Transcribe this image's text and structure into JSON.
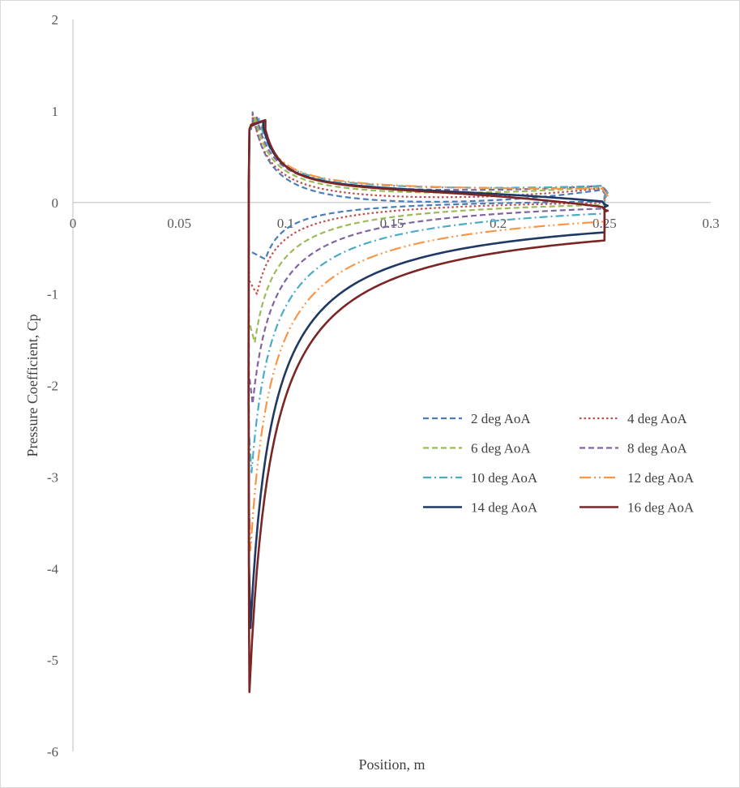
{
  "chart_data": {
    "type": "line",
    "title": "",
    "xlabel": "Position, m",
    "ylabel": "Pressure Coefficient, Cp",
    "xlim": [
      0,
      0.3
    ],
    "ylim": [
      -6,
      2
    ],
    "xticks": [
      "0",
      "0.05",
      "0.1",
      "0.15",
      "0.2",
      "0.25",
      "0.3"
    ],
    "yticks": [
      "2",
      "1",
      "0",
      "-1",
      "-2",
      "-3",
      "-4",
      "-5",
      "-6"
    ],
    "grid": false,
    "legend_position": "lower-right",
    "leading_edge_x": 0.083,
    "trailing_edge_x": 0.25,
    "series": [
      {
        "name": "2 deg AoA",
        "color": "#4a7ebb",
        "dash": "dash",
        "suction_min": -0.62,
        "suction_min_x": 0.0905,
        "stag_peak": 0.85,
        "stag_x": 0.0845,
        "upper_mid": -0.24,
        "upper_mid_x": 0.11,
        "upper_te": 0.05,
        "lower_te": 0.1
      },
      {
        "name": "4 deg AoA",
        "color": "#c0504d",
        "dash": "dot",
        "suction_min": -1.0,
        "suction_min_x": 0.0865,
        "stag_peak": 0.86,
        "stag_x": 0.0845,
        "upper_mid": -0.15,
        "upper_mid_x": 0.12,
        "upper_te": 0.06,
        "lower_te": 0.12
      },
      {
        "name": "6 deg AoA",
        "color": "#9bbb59",
        "dash": "dash",
        "suction_min": -1.53,
        "suction_min_x": 0.0855,
        "stag_peak": 0.87,
        "stag_x": 0.0855,
        "upper_mid": -0.06,
        "upper_mid_x": 0.14,
        "upper_te": 0.07,
        "lower_te": 0.14
      },
      {
        "name": "8 deg AoA",
        "color": "#8064a2",
        "dash": "dash",
        "suction_min": -2.2,
        "suction_min_x": 0.0845,
        "stag_peak": 0.87,
        "stag_x": 0.0865,
        "upper_mid": 0.0,
        "upper_mid_x": 0.15,
        "upper_te": 0.07,
        "lower_te": 0.15
      },
      {
        "name": "10 deg AoA",
        "color": "#4bacc6",
        "dash": "dashdot",
        "suction_min": -2.95,
        "suction_min_x": 0.084,
        "stag_peak": 0.88,
        "stag_x": 0.0875,
        "upper_mid": 0.06,
        "upper_mid_x": 0.16,
        "upper_te": 0.06,
        "lower_te": 0.15
      },
      {
        "name": "12 deg AoA",
        "color": "#f79646",
        "dash": "longdashdot",
        "suction_min": -3.8,
        "suction_min_x": 0.0835,
        "stag_peak": 0.88,
        "stag_x": 0.0885,
        "upper_mid": 0.1,
        "upper_mid_x": 0.16,
        "upper_te": 0.02,
        "lower_te": 0.12
      },
      {
        "name": "14 deg AoA",
        "color": "#1f3864",
        "dash": "solid",
        "suction_min": -4.65,
        "suction_min_x": 0.0835,
        "stag_peak": 0.89,
        "stag_x": 0.0895,
        "upper_mid": 0.15,
        "upper_mid_x": 0.16,
        "upper_te": -0.05,
        "lower_te": -0.02
      },
      {
        "name": "16 deg AoA",
        "color": "#7b2525",
        "dash": "solid",
        "suction_min": -5.35,
        "suction_min_x": 0.083,
        "stag_peak": 0.9,
        "stag_x": 0.0905,
        "upper_mid": 0.18,
        "upper_mid_x": 0.16,
        "upper_te": -0.1,
        "lower_te": -0.08
      }
    ]
  }
}
